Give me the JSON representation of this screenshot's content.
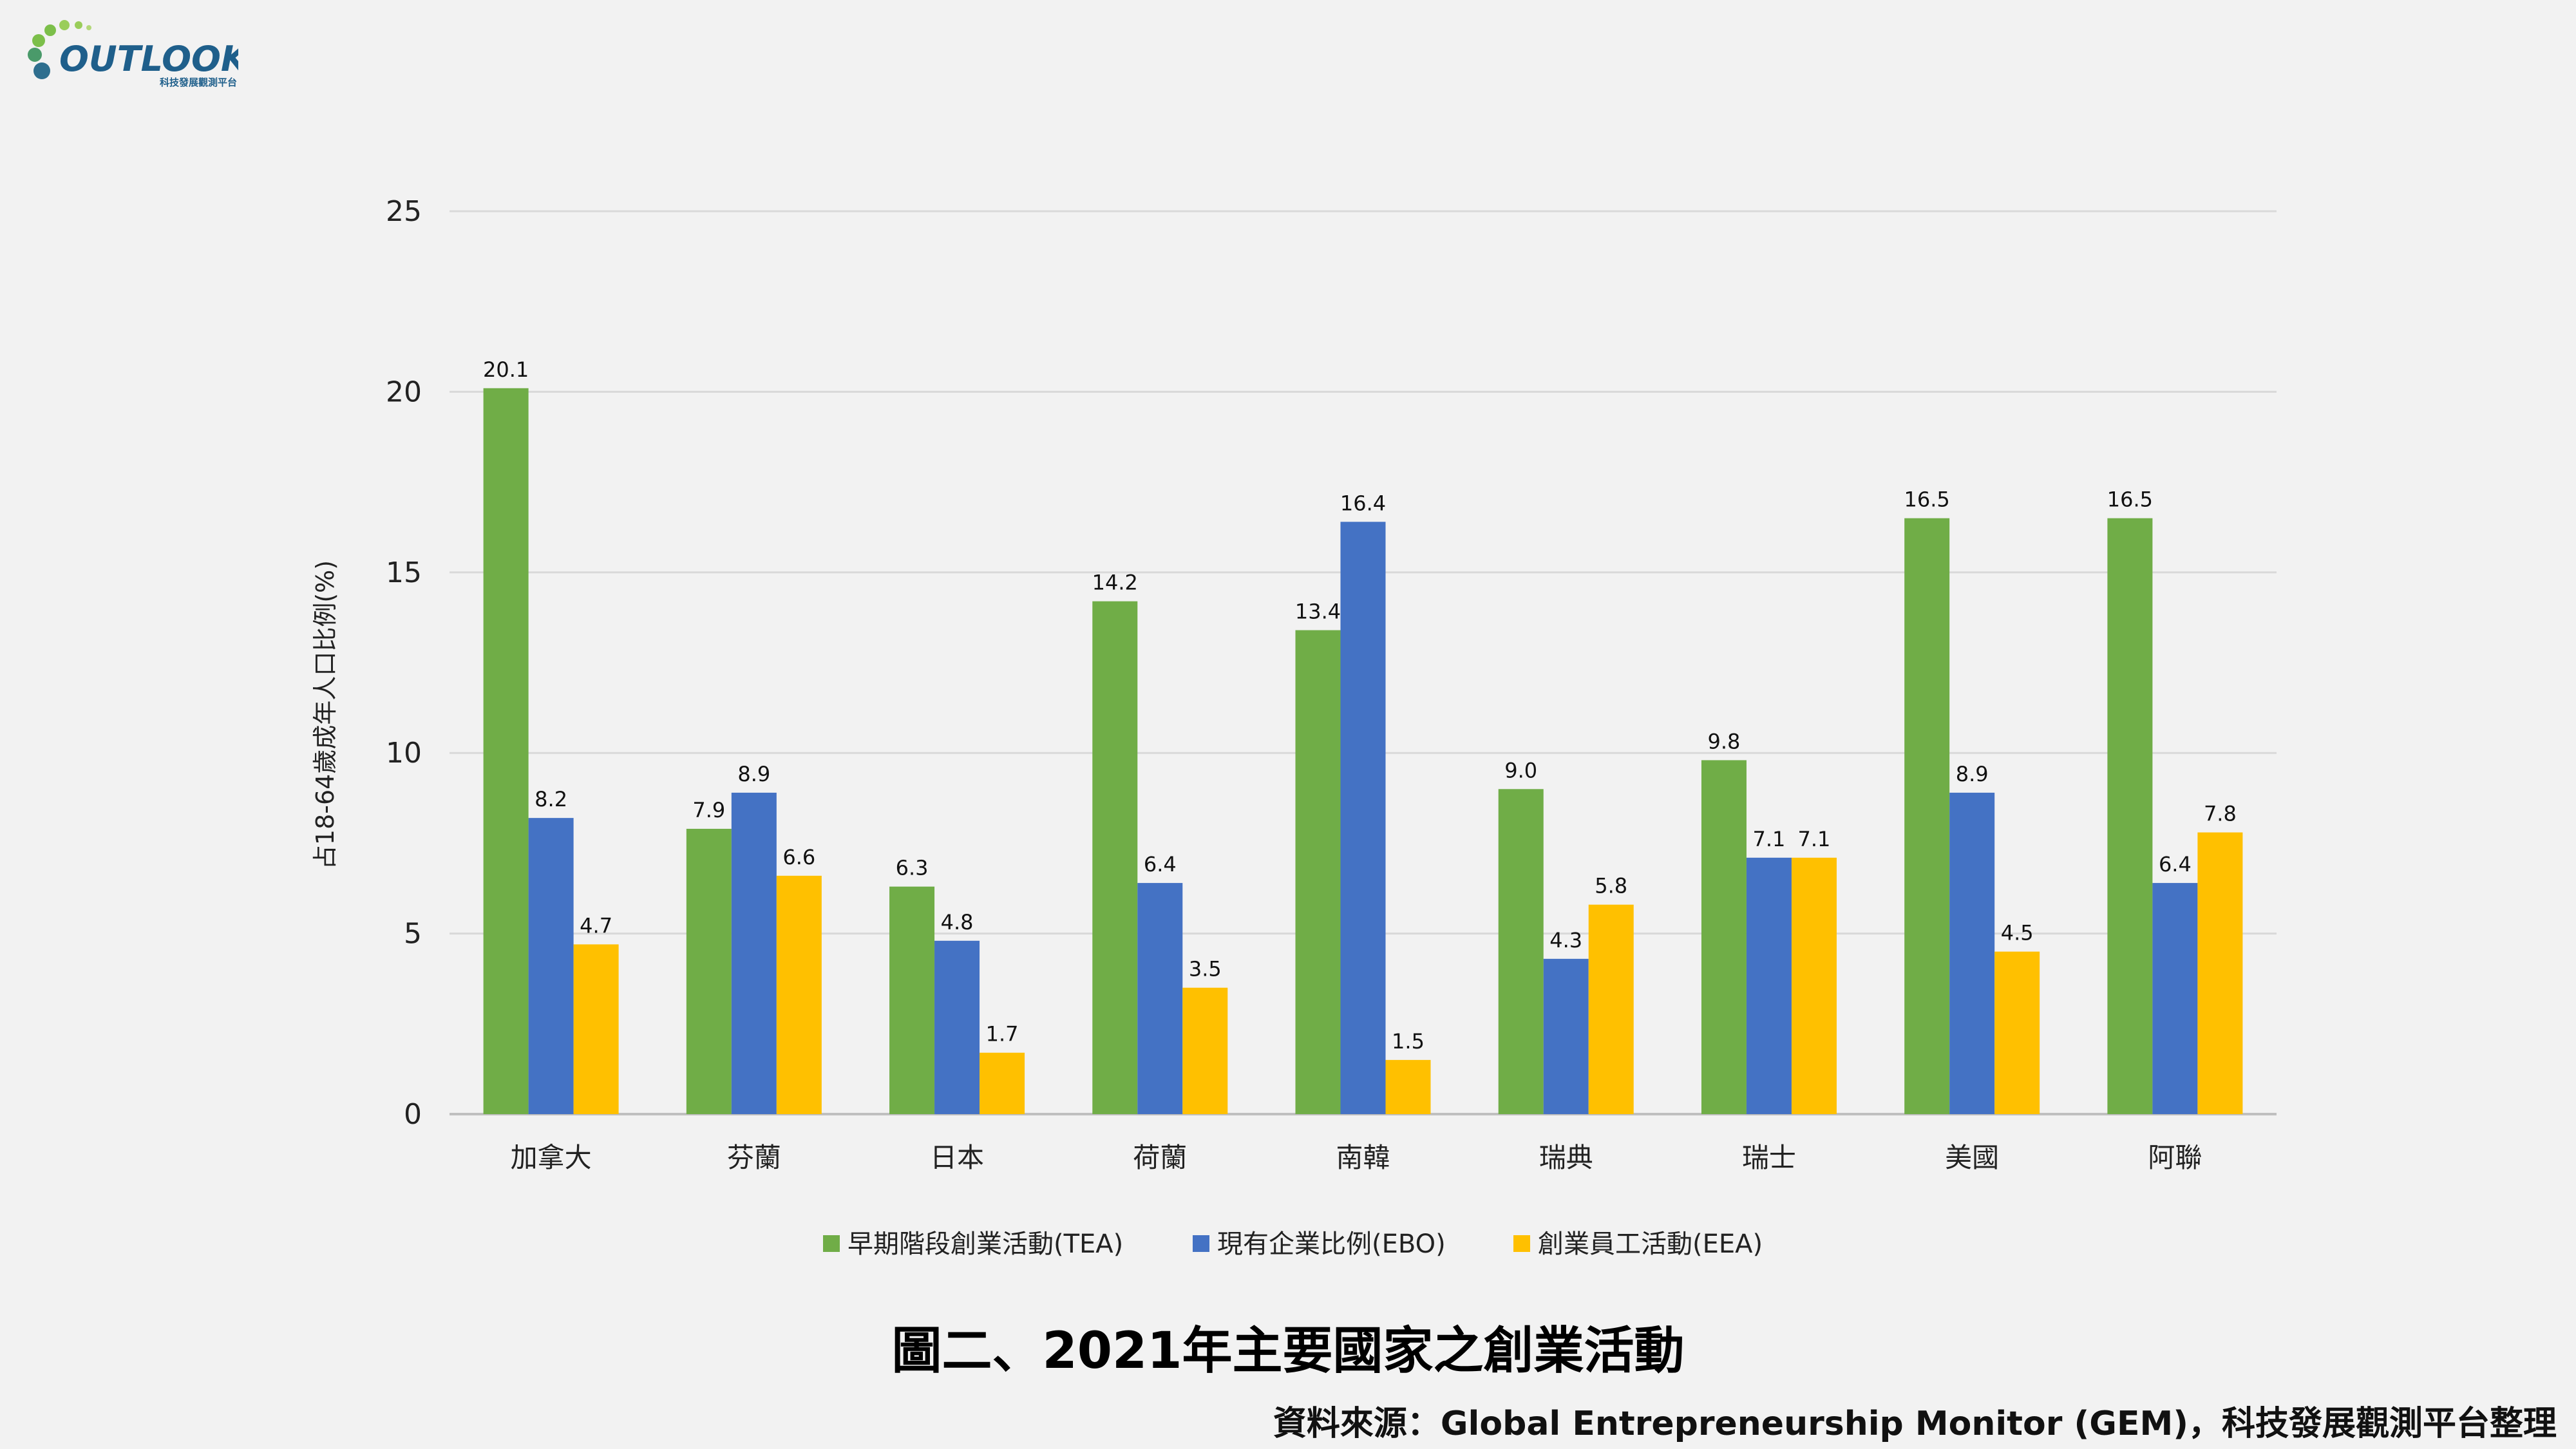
{
  "logo": {
    "name": "OUTLOOK",
    "tagline": "科技發展觀測平台"
  },
  "chart_data": {
    "type": "bar",
    "title": "",
    "xlabel": "",
    "ylabel": "占18-64歲成年人口比例(%)",
    "ylim": [
      0,
      25
    ],
    "yticks": [
      0,
      5,
      10,
      15,
      20,
      25
    ],
    "grid": true,
    "legend_position": "bottom",
    "categories": [
      "加拿大",
      "芬蘭",
      "日本",
      "荷蘭",
      "南韓",
      "瑞典",
      "瑞士",
      "美國",
      "阿聯"
    ],
    "series": [
      {
        "name": "早期階段創業活動(TEA)",
        "color": "#70ad47",
        "values": [
          20.1,
          7.9,
          6.3,
          14.2,
          13.4,
          9.0,
          9.8,
          16.5,
          16.5
        ]
      },
      {
        "name": "現有企業比例(EBO)",
        "color": "#4472c4",
        "values": [
          8.2,
          8.9,
          4.8,
          6.4,
          16.4,
          4.3,
          7.1,
          8.9,
          6.4
        ]
      },
      {
        "name": "創業員工活動(EEA)",
        "color": "#ffc000",
        "values": [
          4.7,
          6.6,
          1.7,
          3.5,
          1.5,
          5.8,
          7.1,
          4.5,
          7.8
        ]
      }
    ]
  },
  "figure": {
    "caption": "圖二、2021年主要國家之創業活動",
    "source": "資料來源：Global Entrepreneurship Monitor (GEM)，科技發展觀測平台整理"
  }
}
